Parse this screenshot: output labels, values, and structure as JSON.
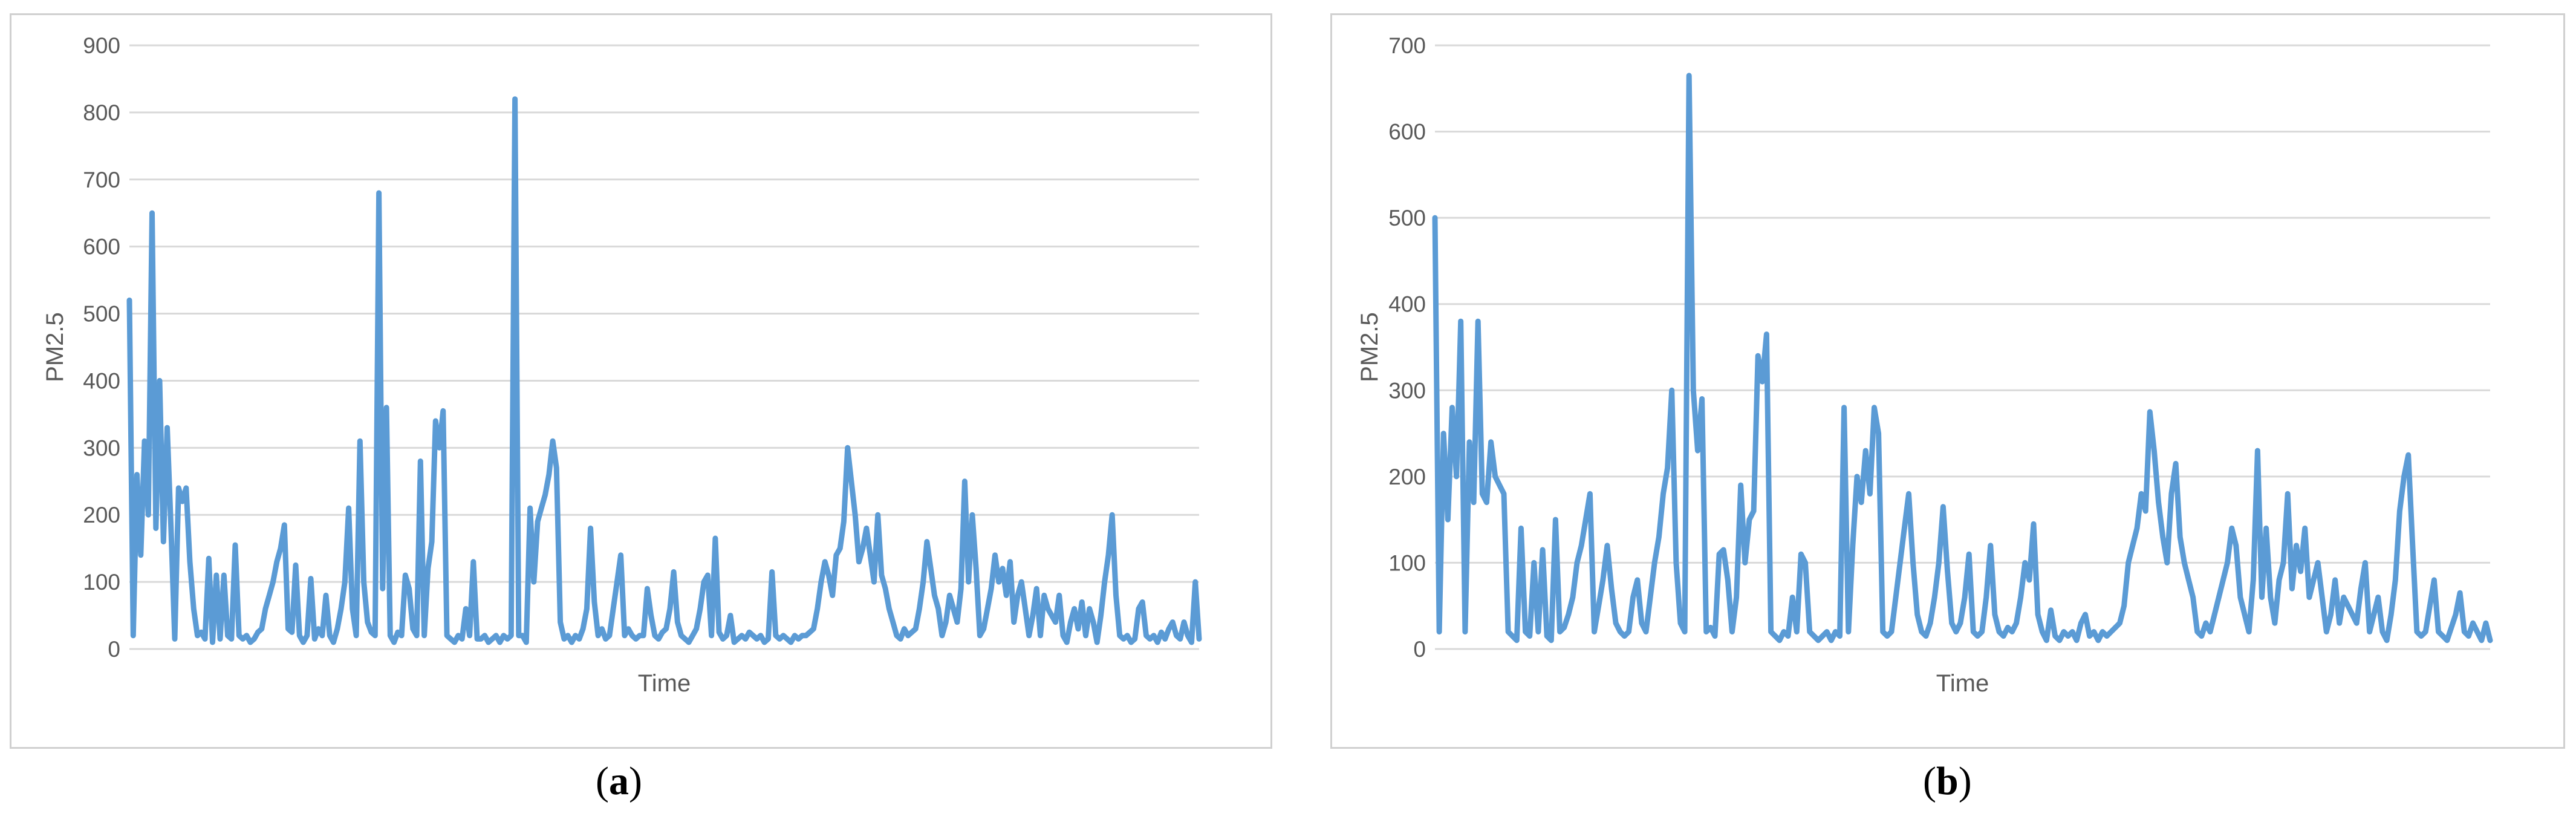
{
  "colors": {
    "series": "#5b9bd5",
    "grid": "#d9d9d9",
    "frame": "#d0d0d0",
    "text": "#595959"
  },
  "chart_data": [
    {
      "type": "line",
      "title": "",
      "xlabel": "Time",
      "ylabel": "PM2.5",
      "ylim": [
        0,
        900
      ],
      "yticks": [
        0,
        100,
        200,
        300,
        400,
        500,
        600,
        700,
        800,
        900
      ],
      "grid": true,
      "legend": "none",
      "caption_letter": "a",
      "series": [
        {
          "values": [
            520,
            20,
            260,
            140,
            310,
            200,
            650,
            180,
            400,
            160,
            330,
            180,
            15,
            240,
            220,
            240,
            130,
            60,
            20,
            25,
            15,
            135,
            10,
            110,
            15,
            110,
            20,
            15,
            155,
            20,
            15,
            20,
            10,
            15,
            25,
            30,
            60,
            80,
            100,
            130,
            150,
            185,
            30,
            25,
            125,
            20,
            10,
            20,
            105,
            15,
            30,
            20,
            80,
            20,
            10,
            30,
            60,
            100,
            210,
            60,
            20,
            310,
            100,
            40,
            25,
            20,
            680,
            90,
            360,
            20,
            10,
            25,
            20,
            110,
            90,
            30,
            20,
            280,
            20,
            120,
            160,
            340,
            300,
            355,
            20,
            15,
            10,
            20,
            15,
            60,
            20,
            130,
            15,
            15,
            20,
            10,
            15,
            20,
            10,
            20,
            15,
            20,
            820,
            20,
            20,
            10,
            210,
            100,
            190,
            210,
            230,
            260,
            310,
            270,
            40,
            15,
            20,
            10,
            20,
            15,
            30,
            60,
            180,
            70,
            20,
            30,
            15,
            20,
            60,
            100,
            140,
            20,
            30,
            20,
            15,
            20,
            20,
            90,
            50,
            20,
            15,
            25,
            30,
            60,
            115,
            40,
            20,
            15,
            10,
            20,
            30,
            60,
            100,
            110,
            20,
            165,
            25,
            15,
            20,
            50,
            10,
            15,
            20,
            15,
            25,
            20,
            15,
            20,
            10,
            15,
            115,
            20,
            15,
            20,
            15,
            10,
            20,
            15,
            20,
            20,
            25,
            30,
            60,
            100,
            130,
            110,
            80,
            140,
            150,
            190,
            300,
            250,
            200,
            130,
            150,
            180,
            140,
            100,
            200,
            110,
            90,
            60,
            40,
            20,
            15,
            30,
            20,
            25,
            30,
            60,
            100,
            160,
            120,
            80,
            60,
            20,
            40,
            80,
            60,
            40,
            90,
            250,
            100,
            200,
            120,
            20,
            30,
            60,
            90,
            140,
            100,
            120,
            80,
            130,
            40,
            80,
            100,
            60,
            20,
            50,
            90,
            20,
            80,
            60,
            50,
            40,
            80,
            20,
            10,
            40,
            60,
            30,
            70,
            20,
            60,
            40,
            10,
            50,
            100,
            140,
            200,
            80,
            20,
            15,
            20,
            10,
            15,
            60,
            70,
            20,
            15,
            20,
            10,
            25,
            15,
            30,
            40,
            20,
            15,
            40,
            20,
            10,
            100,
            15
          ]
        }
      ]
    },
    {
      "type": "line",
      "title": "",
      "xlabel": "Time",
      "ylabel": "PM2.5",
      "ylim": [
        0,
        700
      ],
      "yticks": [
        0,
        100,
        200,
        300,
        400,
        500,
        600,
        700
      ],
      "grid": true,
      "legend": "none",
      "caption_letter": "b",
      "series": [
        {
          "values": [
            500,
            20,
            250,
            150,
            280,
            200,
            380,
            20,
            240,
            170,
            380,
            180,
            170,
            240,
            200,
            190,
            180,
            20,
            15,
            10,
            140,
            20,
            15,
            100,
            20,
            115,
            15,
            10,
            150,
            20,
            25,
            40,
            60,
            100,
            120,
            150,
            180,
            20,
            50,
            80,
            120,
            70,
            30,
            20,
            15,
            20,
            60,
            80,
            30,
            20,
            60,
            100,
            130,
            180,
            210,
            300,
            100,
            30,
            20,
            665,
            300,
            230,
            290,
            20,
            25,
            15,
            110,
            115,
            80,
            20,
            60,
            190,
            100,
            150,
            160,
            340,
            310,
            365,
            20,
            15,
            10,
            20,
            15,
            60,
            20,
            110,
            100,
            20,
            15,
            10,
            15,
            20,
            10,
            20,
            15,
            280,
            20,
            120,
            200,
            170,
            230,
            180,
            280,
            250,
            20,
            15,
            20,
            60,
            100,
            140,
            180,
            100,
            40,
            20,
            15,
            30,
            60,
            100,
            165,
            90,
            30,
            20,
            30,
            60,
            110,
            20,
            15,
            20,
            60,
            120,
            40,
            20,
            15,
            25,
            20,
            30,
            60,
            100,
            80,
            145,
            40,
            20,
            10,
            45,
            15,
            10,
            20,
            15,
            20,
            10,
            30,
            40,
            15,
            20,
            10,
            20,
            15,
            20,
            25,
            30,
            50,
            100,
            120,
            140,
            180,
            160,
            275,
            230,
            170,
            130,
            100,
            180,
            215,
            130,
            100,
            80,
            60,
            20,
            15,
            30,
            20,
            40,
            60,
            80,
            100,
            140,
            120,
            60,
            40,
            20,
            80,
            230,
            60,
            140,
            60,
            30,
            80,
            100,
            180,
            70,
            120,
            90,
            140,
            60,
            80,
            100,
            60,
            20,
            40,
            80,
            30,
            60,
            50,
            40,
            30,
            70,
            100,
            20,
            40,
            60,
            20,
            10,
            40,
            80,
            160,
            200,
            225,
            120,
            20,
            15,
            20,
            50,
            80,
            20,
            15,
            10,
            25,
            40,
            65,
            20,
            15,
            30,
            20,
            10,
            30,
            10
          ]
        }
      ]
    }
  ]
}
